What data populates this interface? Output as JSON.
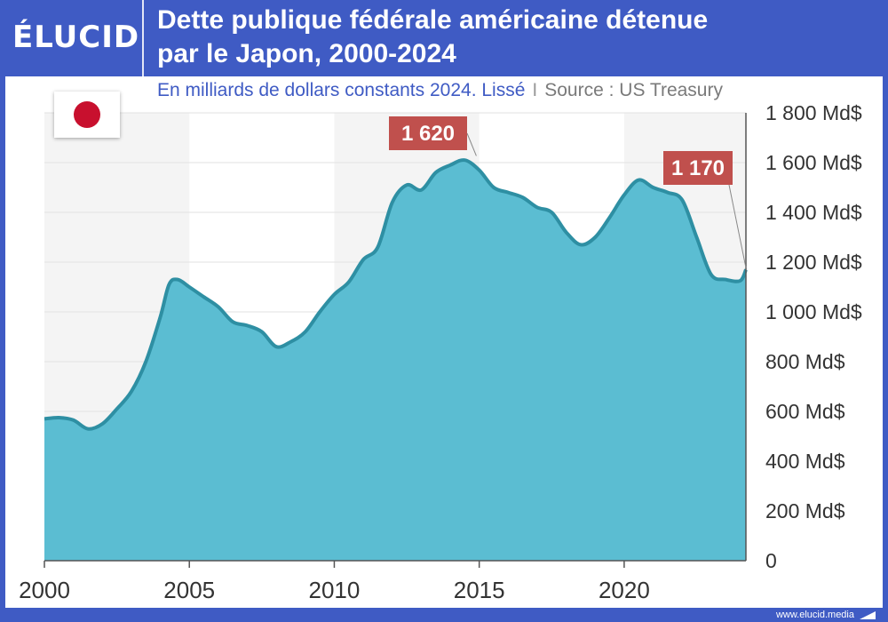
{
  "header": {
    "logo": "ÉLUCID",
    "title_line1": "Dette publique fédérale américaine détenue",
    "title_line2": "par le Japon, 2000-2024",
    "subtitle": "En milliards de dollars constants 2024. Lissé",
    "separator": "I",
    "source": "Source : US Treasury"
  },
  "footer": {
    "url": "www.elucid.media"
  },
  "flag": {
    "icon": "japan-flag-icon"
  },
  "colors": {
    "area_fill": "#5bbdd2",
    "area_line": "#2e8fa3",
    "callout": "#c0504d",
    "frame": "#3f5bc4",
    "band": "#f4f4f4"
  },
  "chart_data": {
    "type": "area",
    "title": "Dette publique fédérale américaine détenue par le Japon, 2000-2024",
    "subtitle": "En milliards de dollars constants 2024. Lissé",
    "ylim": [
      0,
      1800
    ],
    "xlim": [
      2000,
      2024.2
    ],
    "y_ticks": [
      0,
      200,
      400,
      600,
      800,
      1000,
      1200,
      1400,
      1600,
      1800
    ],
    "y_tick_labels": [
      "0",
      "200 Md$",
      "400 Md$",
      "600 Md$",
      "800 Md$",
      "1 000 Md$",
      "1 200 Md$",
      "1 400 Md$",
      "1 600 Md$",
      "1 800 Md$"
    ],
    "x_ticks": [
      2000,
      2005,
      2010,
      2015,
      2020
    ],
    "x_tick_labels": [
      "2000",
      "2005",
      "2010",
      "2015",
      "2020"
    ],
    "shaded_bands": [
      [
        2000,
        2005
      ],
      [
        2010,
        2015
      ],
      [
        2020,
        2024.2
      ]
    ],
    "grid": true,
    "series": [
      {
        "x": [
          2000,
          2000.5,
          2001,
          2001.5,
          2002,
          2002.5,
          2003,
          2003.5,
          2004,
          2004.3,
          2004.6,
          2005,
          2005.5,
          2006,
          2006.5,
          2007,
          2007.5,
          2008,
          2008.5,
          2009,
          2009.5,
          2010,
          2010.5,
          2011,
          2011.5,
          2012,
          2012.5,
          2013,
          2013.5,
          2014,
          2014.5,
          2015,
          2015.5,
          2016,
          2016.5,
          2017,
          2017.5,
          2018,
          2018.5,
          2019,
          2019.5,
          2020,
          2020.5,
          2021,
          2021.5,
          2022,
          2022.5,
          2023,
          2023.5,
          2024,
          2024.2
        ],
        "values": [
          570,
          575,
          565,
          530,
          550,
          610,
          680,
          800,
          980,
          1110,
          1130,
          1100,
          1060,
          1020,
          960,
          945,
          920,
          860,
          880,
          920,
          1000,
          1070,
          1120,
          1210,
          1260,
          1440,
          1510,
          1490,
          1560,
          1590,
          1610,
          1570,
          1500,
          1480,
          1460,
          1420,
          1400,
          1320,
          1270,
          1300,
          1380,
          1470,
          1530,
          1500,
          1480,
          1450,
          1300,
          1150,
          1130,
          1125,
          1170
        ]
      }
    ],
    "annotations": [
      {
        "label": "1 620",
        "x": 2014.9,
        "y": 1620
      },
      {
        "label": "1 170",
        "x": 2024.2,
        "y": 1170
      }
    ]
  }
}
